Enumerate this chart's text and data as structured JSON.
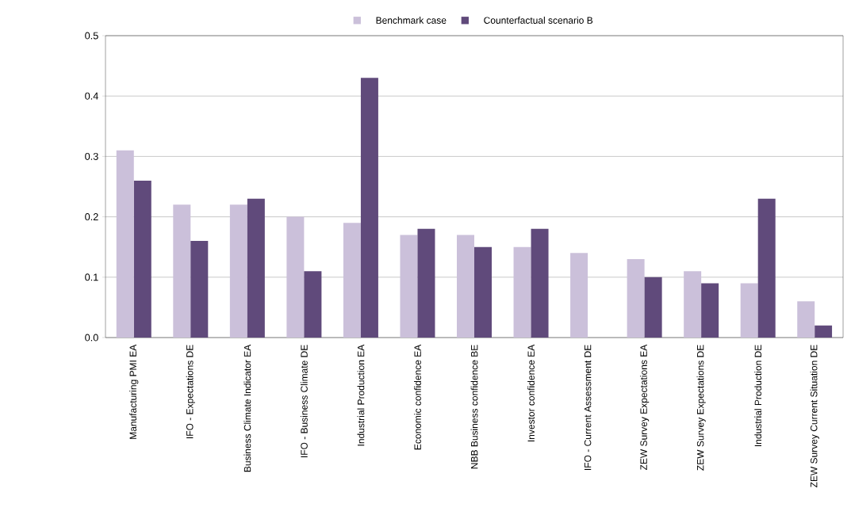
{
  "chart_data": {
    "type": "bar",
    "categories": [
      "Manufacturing PMI EA",
      "IFO - Expectations DE",
      "Business Climate Indicator EA",
      "IFO - Business Climate DE",
      "Industrial Production EA",
      "Economic confidence EA",
      "NBB Business confidence BE",
      "Investor confidence EA",
      "IFO - Current Assessment DE",
      "ZEW Survey Expectations EA",
      "ZEW Survey Expectations DE",
      "Industrial Production DE",
      "ZEW Survey Current Situation DE"
    ],
    "series": [
      {
        "name": "Benchmark case",
        "color": "#cbc0da",
        "values": [
          0.31,
          0.22,
          0.22,
          0.2,
          0.19,
          0.17,
          0.17,
          0.15,
          0.14,
          0.13,
          0.11,
          0.09,
          0.06
        ]
      },
      {
        "name": "Counterfactual scenario B",
        "color": "#604a7b",
        "values": [
          0.26,
          0.16,
          0.23,
          0.11,
          0.43,
          0.18,
          0.15,
          0.18,
          null,
          0.1,
          0.09,
          0.23,
          0.02
        ]
      }
    ],
    "ylim": [
      0,
      0.5
    ],
    "yticks": [
      {
        "value": 0,
        "label": "0.0"
      },
      0.1,
      0.2,
      0.3,
      0.4,
      0.5
    ],
    "grid": "y",
    "legend": "top"
  }
}
